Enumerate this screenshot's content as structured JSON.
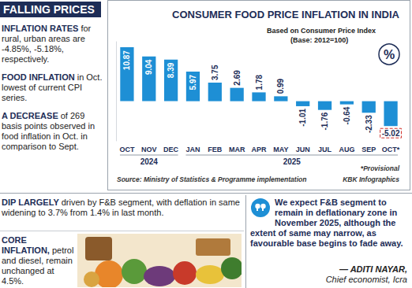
{
  "header": "FALLING PRICES",
  "notes": [
    {
      "lead": "INFLATION RATES",
      "text": "for rural, urban areas are -4.85%, -5.18%, respectively."
    },
    {
      "lead": "FOOD INFLATION",
      "text": "in Oct. lowest of current CPI series."
    },
    {
      "lead": "A DECREASE",
      "text": "of 269 basis points observed in food inflation in Oct. in comparison to Sept."
    }
  ],
  "dip_note": {
    "lead": "DIP LARGELY",
    "text": "driven by F&B segment, with deflation in same widening to 3.7% from 1.4% in last month."
  },
  "core_note": {
    "lead": "CORE INFLATION,",
    "text": "petrol and diesel, remain unchanged at 4.5%."
  },
  "quote": {
    "text": "We expect F&B segment to remain in deflationary zone in November 2025, although the extent of same may narrow, as favourable base begins to fade away.",
    "author": "— ADITI NAYAR,",
    "role": "Chief economist, Icra"
  },
  "chart_data": {
    "type": "bar",
    "title": "CONSUMER FOOD PRICE INFLATION IN INDIA",
    "subtitle": "Based on Consumer Price Index",
    "base_note": "(Base: 2012=100)",
    "icon_text": "%",
    "categories": [
      "OCT",
      "NOV",
      "DEC",
      "JAN",
      "FEB",
      "MAR",
      "APR",
      "MAY",
      "JUN",
      "JUL",
      "AUG",
      "SEP",
      "OCT*"
    ],
    "values": [
      10.87,
      9.04,
      8.39,
      5.97,
      3.75,
      2.69,
      1.78,
      0.99,
      -1.01,
      -1.76,
      -0.64,
      -2.33,
      -5.02
    ],
    "x_groups": [
      {
        "label": "2024",
        "categories": [
          "OCT",
          "NOV",
          "DEC"
        ]
      },
      {
        "label": "2025",
        "categories": [
          "JAN",
          "FEB",
          "MAR",
          "APR",
          "MAY",
          "JUN",
          "JUL",
          "AUG",
          "SEP",
          "OCT*"
        ]
      }
    ],
    "color": "#1e8fd5",
    "ylim": [
      -8,
      12
    ],
    "grid": false,
    "data_labels": true,
    "tick_labels": "x",
    "source": "Source: Ministry of Statistics & Programme implementation",
    "footnote": "*Provisional",
    "credit": "KBK Infographics"
  }
}
